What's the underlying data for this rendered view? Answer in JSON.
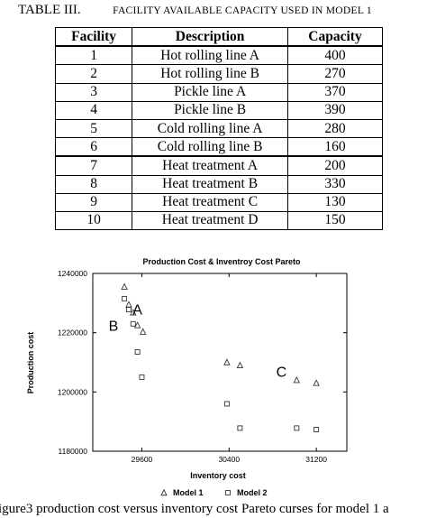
{
  "table": {
    "label": "TABLE III.",
    "title": "FACILITY AVAILABLE CAPACITY USED IN MODEL 1",
    "headers": [
      "Facility",
      "Description",
      "Capacity"
    ],
    "rows": [
      {
        "facility": "1",
        "description": "Hot rolling line A",
        "capacity": "400"
      },
      {
        "facility": "2",
        "description": "Hot rolling line B",
        "capacity": "270"
      },
      {
        "facility": "3",
        "description": "Pickle line A",
        "capacity": "370"
      },
      {
        "facility": "4",
        "description": "Pickle line B",
        "capacity": "390"
      },
      {
        "facility": "5",
        "description": "Cold rolling line A",
        "capacity": "280"
      },
      {
        "facility": "6",
        "description": "Cold rolling line B",
        "capacity": "160"
      },
      {
        "facility": "7",
        "description": "Heat treatment A",
        "capacity": "200"
      },
      {
        "facility": "8",
        "description": "Heat treatment B",
        "capacity": "330"
      },
      {
        "facility": "9",
        "description": "Heat treatment C",
        "capacity": "130"
      },
      {
        "facility": "10",
        "description": "Heat treatment D",
        "capacity": "150"
      }
    ]
  },
  "chart_data": {
    "type": "scatter",
    "title": "Production Cost & Inventroy Cost Pareto",
    "xlabel": "Inventory cost",
    "ylabel": "Production cost",
    "xlim": [
      29150,
      31480
    ],
    "ylim": [
      1180000,
      1240000
    ],
    "xticks": [
      29600,
      30400,
      31200
    ],
    "yticks": [
      1180000,
      1200000,
      1220000,
      1240000
    ],
    "grid": false,
    "legend_position": "bottom",
    "series": [
      {
        "name": "Model 1",
        "marker": "triangle",
        "points": [
          [
            29440,
            1235500
          ],
          [
            29480,
            1229500
          ],
          [
            29520,
            1226800
          ],
          [
            29560,
            1222500
          ],
          [
            29610,
            1220300
          ],
          [
            30380,
            1210000
          ],
          [
            30500,
            1209000
          ],
          [
            31020,
            1204000
          ],
          [
            31200,
            1203000
          ]
        ]
      },
      {
        "name": "Model 2",
        "marker": "square",
        "points": [
          [
            29440,
            1231500
          ],
          [
            29480,
            1227800
          ],
          [
            29520,
            1223000
          ],
          [
            29560,
            1213500
          ],
          [
            29600,
            1205000
          ],
          [
            30380,
            1196000
          ],
          [
            30500,
            1187800
          ],
          [
            31020,
            1187800
          ],
          [
            31200,
            1187300
          ]
        ]
      }
    ],
    "annotations": [
      {
        "text": "A",
        "x": 29560,
        "y": 1228000
      },
      {
        "text": "B",
        "x": 29340,
        "y": 1222500
      },
      {
        "text": "C",
        "x": 30880,
        "y": 1207000
      }
    ],
    "colors": {
      "markers": "#333333",
      "frame": "#000000"
    }
  },
  "figure_caption": "igure3 production cost versus inventory cost Pareto curses for model 1 a"
}
